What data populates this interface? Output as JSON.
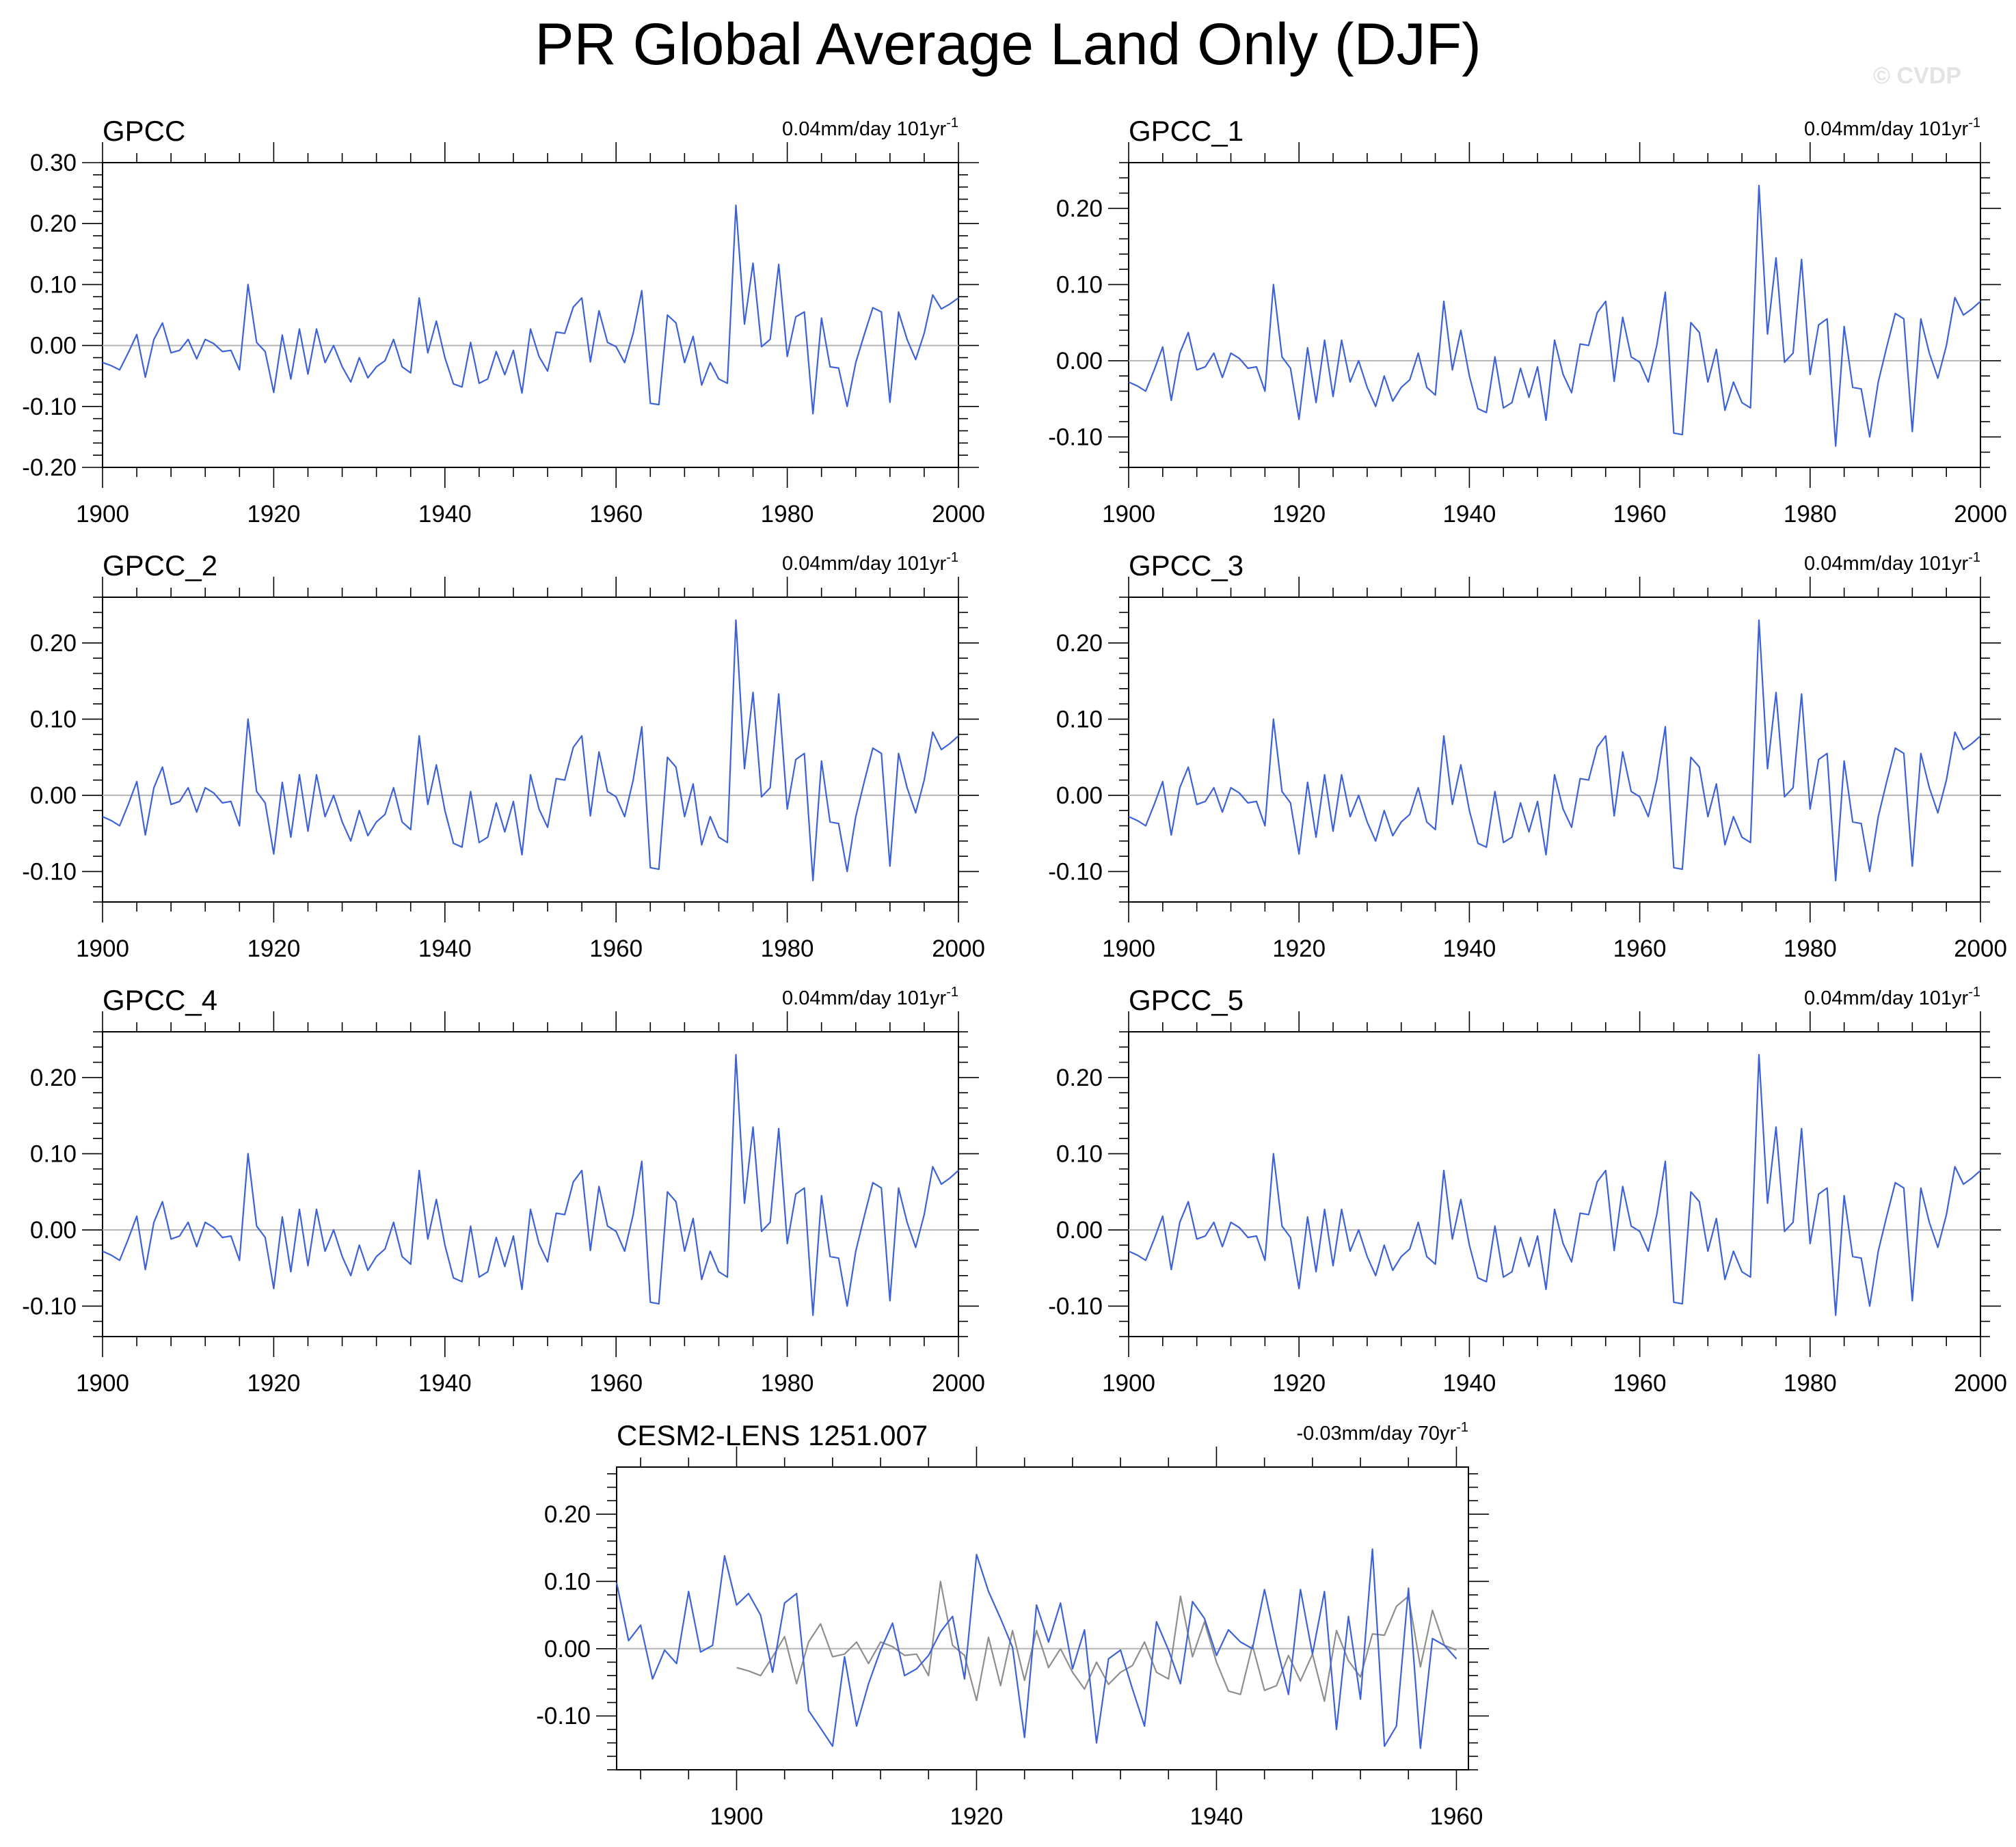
{
  "title": "PR Global Average Land Only (DJF)",
  "watermark": "© CVDP",
  "colors": {
    "series": "#3d62d8",
    "zero_line": "#b5b5b5",
    "secondary": "#8e8e8e",
    "frame": "#000000"
  },
  "chart_data": [
    {
      "type": "line",
      "title": "GPCC",
      "trend": {
        "value": "0.04mm/day 101yr",
        "exp": "-1"
      },
      "xlim": [
        1900,
        2000
      ],
      "ylim": [
        -0.2,
        0.3
      ],
      "yticks": [
        -0.2,
        -0.1,
        0.0,
        0.1,
        0.2,
        0.3
      ],
      "ytick_labels": [
        "-0.20",
        "-0.10",
        "0.00",
        "0.10",
        "0.20",
        "0.30"
      ],
      "xticks": [
        1900,
        1920,
        1940,
        1960,
        1980,
        2000
      ],
      "x_start": 1900,
      "series": [
        {
          "name": "GPCC",
          "values": [
            -0.028,
            -0.033,
            -0.04,
            -0.012,
            0.018,
            -0.052,
            0.01,
            0.037,
            -0.012,
            -0.008,
            0.01,
            -0.022,
            0.01,
            0.003,
            -0.01,
            -0.008,
            -0.04,
            0.1,
            0.005,
            -0.01,
            -0.077,
            0.017,
            -0.055,
            0.027,
            -0.047,
            0.027,
            -0.028,
            0.0,
            -0.035,
            -0.06,
            -0.02,
            -0.053,
            -0.035,
            -0.025,
            0.01,
            -0.035,
            -0.045,
            0.078,
            -0.012,
            0.04,
            -0.02,
            -0.063,
            -0.068,
            0.005,
            -0.062,
            -0.055,
            -0.01,
            -0.048,
            -0.008,
            -0.078,
            0.027,
            -0.018,
            -0.042,
            0.022,
            0.02,
            0.063,
            0.078,
            -0.027,
            0.057,
            0.005,
            -0.002,
            -0.028,
            0.02,
            0.09,
            -0.095,
            -0.097,
            0.05,
            0.037,
            -0.028,
            0.015,
            -0.065,
            -0.028,
            -0.055,
            -0.062,
            0.23,
            0.035,
            0.135,
            -0.002,
            0.01,
            0.133,
            -0.018,
            0.047,
            0.055,
            -0.112,
            0.045,
            -0.035,
            -0.037,
            -0.1,
            -0.028,
            0.018,
            0.062,
            0.055,
            -0.093,
            0.055,
            0.01,
            -0.023,
            0.02,
            0.083,
            0.06,
            0.068,
            0.078
          ]
        }
      ]
    },
    {
      "type": "line",
      "title": "GPCC_1",
      "trend": {
        "value": "0.04mm/day 101yr",
        "exp": "-1"
      },
      "xlim": [
        1900,
        2000
      ],
      "ylim": [
        -0.14,
        0.26
      ],
      "yticks": [
        -0.1,
        0.0,
        0.1,
        0.2
      ],
      "ytick_labels": [
        "-0.10",
        "0.00",
        "0.10",
        "0.20"
      ],
      "xticks": [
        1900,
        1920,
        1940,
        1960,
        1980,
        2000
      ],
      "x_start": 1900,
      "series": [
        {
          "name": "GPCC_1",
          "values": [
            -0.028,
            -0.033,
            -0.04,
            -0.012,
            0.018,
            -0.052,
            0.01,
            0.037,
            -0.012,
            -0.008,
            0.01,
            -0.022,
            0.01,
            0.003,
            -0.01,
            -0.008,
            -0.04,
            0.1,
            0.005,
            -0.01,
            -0.077,
            0.017,
            -0.055,
            0.027,
            -0.047,
            0.027,
            -0.028,
            0.0,
            -0.035,
            -0.06,
            -0.02,
            -0.053,
            -0.035,
            -0.025,
            0.01,
            -0.035,
            -0.045,
            0.078,
            -0.012,
            0.04,
            -0.02,
            -0.063,
            -0.068,
            0.005,
            -0.062,
            -0.055,
            -0.01,
            -0.048,
            -0.008,
            -0.078,
            0.027,
            -0.018,
            -0.042,
            0.022,
            0.02,
            0.063,
            0.078,
            -0.027,
            0.057,
            0.005,
            -0.002,
            -0.028,
            0.02,
            0.09,
            -0.095,
            -0.097,
            0.05,
            0.037,
            -0.028,
            0.015,
            -0.065,
            -0.028,
            -0.055,
            -0.062,
            0.23,
            0.035,
            0.135,
            -0.002,
            0.01,
            0.133,
            -0.018,
            0.047,
            0.055,
            -0.112,
            0.045,
            -0.035,
            -0.037,
            -0.1,
            -0.028,
            0.018,
            0.062,
            0.055,
            -0.093,
            0.055,
            0.01,
            -0.023,
            0.02,
            0.083,
            0.06,
            0.068,
            0.078
          ]
        }
      ]
    },
    {
      "type": "line",
      "title": "GPCC_2",
      "trend": {
        "value": "0.04mm/day 101yr",
        "exp": "-1"
      },
      "xlim": [
        1900,
        2000
      ],
      "ylim": [
        -0.14,
        0.26
      ],
      "yticks": [
        -0.1,
        0.0,
        0.1,
        0.2
      ],
      "ytick_labels": [
        "-0.10",
        "0.00",
        "0.10",
        "0.20"
      ],
      "xticks": [
        1900,
        1920,
        1940,
        1960,
        1980,
        2000
      ],
      "x_start": 1900,
      "series": [
        {
          "name": "GPCC_2",
          "values": [
            -0.028,
            -0.033,
            -0.04,
            -0.012,
            0.018,
            -0.052,
            0.01,
            0.037,
            -0.012,
            -0.008,
            0.01,
            -0.022,
            0.01,
            0.003,
            -0.01,
            -0.008,
            -0.04,
            0.1,
            0.005,
            -0.01,
            -0.077,
            0.017,
            -0.055,
            0.027,
            -0.047,
            0.027,
            -0.028,
            0.0,
            -0.035,
            -0.06,
            -0.02,
            -0.053,
            -0.035,
            -0.025,
            0.01,
            -0.035,
            -0.045,
            0.078,
            -0.012,
            0.04,
            -0.02,
            -0.063,
            -0.068,
            0.005,
            -0.062,
            -0.055,
            -0.01,
            -0.048,
            -0.008,
            -0.078,
            0.027,
            -0.018,
            -0.042,
            0.022,
            0.02,
            0.063,
            0.078,
            -0.027,
            0.057,
            0.005,
            -0.002,
            -0.028,
            0.02,
            0.09,
            -0.095,
            -0.097,
            0.05,
            0.037,
            -0.028,
            0.015,
            -0.065,
            -0.028,
            -0.055,
            -0.062,
            0.23,
            0.035,
            0.135,
            -0.002,
            0.01,
            0.133,
            -0.018,
            0.047,
            0.055,
            -0.112,
            0.045,
            -0.035,
            -0.037,
            -0.1,
            -0.028,
            0.018,
            0.062,
            0.055,
            -0.093,
            0.055,
            0.01,
            -0.023,
            0.02,
            0.083,
            0.06,
            0.068,
            0.078
          ]
        }
      ]
    },
    {
      "type": "line",
      "title": "GPCC_3",
      "trend": {
        "value": "0.04mm/day 101yr",
        "exp": "-1"
      },
      "xlim": [
        1900,
        2000
      ],
      "ylim": [
        -0.14,
        0.26
      ],
      "yticks": [
        -0.1,
        0.0,
        0.1,
        0.2
      ],
      "ytick_labels": [
        "-0.10",
        "0.00",
        "0.10",
        "0.20"
      ],
      "xticks": [
        1900,
        1920,
        1940,
        1960,
        1980,
        2000
      ],
      "x_start": 1900,
      "series": [
        {
          "name": "GPCC_3",
          "values": [
            -0.028,
            -0.033,
            -0.04,
            -0.012,
            0.018,
            -0.052,
            0.01,
            0.037,
            -0.012,
            -0.008,
            0.01,
            -0.022,
            0.01,
            0.003,
            -0.01,
            -0.008,
            -0.04,
            0.1,
            0.005,
            -0.01,
            -0.077,
            0.017,
            -0.055,
            0.027,
            -0.047,
            0.027,
            -0.028,
            0.0,
            -0.035,
            -0.06,
            -0.02,
            -0.053,
            -0.035,
            -0.025,
            0.01,
            -0.035,
            -0.045,
            0.078,
            -0.012,
            0.04,
            -0.02,
            -0.063,
            -0.068,
            0.005,
            -0.062,
            -0.055,
            -0.01,
            -0.048,
            -0.008,
            -0.078,
            0.027,
            -0.018,
            -0.042,
            0.022,
            0.02,
            0.063,
            0.078,
            -0.027,
            0.057,
            0.005,
            -0.002,
            -0.028,
            0.02,
            0.09,
            -0.095,
            -0.097,
            0.05,
            0.037,
            -0.028,
            0.015,
            -0.065,
            -0.028,
            -0.055,
            -0.062,
            0.23,
            0.035,
            0.135,
            -0.002,
            0.01,
            0.133,
            -0.018,
            0.047,
            0.055,
            -0.112,
            0.045,
            -0.035,
            -0.037,
            -0.1,
            -0.028,
            0.018,
            0.062,
            0.055,
            -0.093,
            0.055,
            0.01,
            -0.023,
            0.02,
            0.083,
            0.06,
            0.068,
            0.078
          ]
        }
      ]
    },
    {
      "type": "line",
      "title": "GPCC_4",
      "trend": {
        "value": "0.04mm/day 101yr",
        "exp": "-1"
      },
      "xlim": [
        1900,
        2000
      ],
      "ylim": [
        -0.14,
        0.26
      ],
      "yticks": [
        -0.1,
        0.0,
        0.1,
        0.2
      ],
      "ytick_labels": [
        "-0.10",
        "0.00",
        "0.10",
        "0.20"
      ],
      "xticks": [
        1900,
        1920,
        1940,
        1960,
        1980,
        2000
      ],
      "x_start": 1900,
      "series": [
        {
          "name": "GPCC_4",
          "values": [
            -0.028,
            -0.033,
            -0.04,
            -0.012,
            0.018,
            -0.052,
            0.01,
            0.037,
            -0.012,
            -0.008,
            0.01,
            -0.022,
            0.01,
            0.003,
            -0.01,
            -0.008,
            -0.04,
            0.1,
            0.005,
            -0.01,
            -0.077,
            0.017,
            -0.055,
            0.027,
            -0.047,
            0.027,
            -0.028,
            0.0,
            -0.035,
            -0.06,
            -0.02,
            -0.053,
            -0.035,
            -0.025,
            0.01,
            -0.035,
            -0.045,
            0.078,
            -0.012,
            0.04,
            -0.02,
            -0.063,
            -0.068,
            0.005,
            -0.062,
            -0.055,
            -0.01,
            -0.048,
            -0.008,
            -0.078,
            0.027,
            -0.018,
            -0.042,
            0.022,
            0.02,
            0.063,
            0.078,
            -0.027,
            0.057,
            0.005,
            -0.002,
            -0.028,
            0.02,
            0.09,
            -0.095,
            -0.097,
            0.05,
            0.037,
            -0.028,
            0.015,
            -0.065,
            -0.028,
            -0.055,
            -0.062,
            0.23,
            0.035,
            0.135,
            -0.002,
            0.01,
            0.133,
            -0.018,
            0.047,
            0.055,
            -0.112,
            0.045,
            -0.035,
            -0.037,
            -0.1,
            -0.028,
            0.018,
            0.062,
            0.055,
            -0.093,
            0.055,
            0.01,
            -0.023,
            0.02,
            0.083,
            0.06,
            0.068,
            0.078
          ]
        }
      ]
    },
    {
      "type": "line",
      "title": "GPCC_5",
      "trend": {
        "value": "0.04mm/day 101yr",
        "exp": "-1"
      },
      "xlim": [
        1900,
        2000
      ],
      "ylim": [
        -0.14,
        0.26
      ],
      "yticks": [
        -0.1,
        0.0,
        0.1,
        0.2
      ],
      "ytick_labels": [
        "-0.10",
        "0.00",
        "0.10",
        "0.20"
      ],
      "xticks": [
        1900,
        1920,
        1940,
        1960,
        1980,
        2000
      ],
      "x_start": 1900,
      "series": [
        {
          "name": "GPCC_5",
          "values": [
            -0.028,
            -0.033,
            -0.04,
            -0.012,
            0.018,
            -0.052,
            0.01,
            0.037,
            -0.012,
            -0.008,
            0.01,
            -0.022,
            0.01,
            0.003,
            -0.01,
            -0.008,
            -0.04,
            0.1,
            0.005,
            -0.01,
            -0.077,
            0.017,
            -0.055,
            0.027,
            -0.047,
            0.027,
            -0.028,
            0.0,
            -0.035,
            -0.06,
            -0.02,
            -0.053,
            -0.035,
            -0.025,
            0.01,
            -0.035,
            -0.045,
            0.078,
            -0.012,
            0.04,
            -0.02,
            -0.063,
            -0.068,
            0.005,
            -0.062,
            -0.055,
            -0.01,
            -0.048,
            -0.008,
            -0.078,
            0.027,
            -0.018,
            -0.042,
            0.022,
            0.02,
            0.063,
            0.078,
            -0.027,
            0.057,
            0.005,
            -0.002,
            -0.028,
            0.02,
            0.09,
            -0.095,
            -0.097,
            0.05,
            0.037,
            -0.028,
            0.015,
            -0.065,
            -0.028,
            -0.055,
            -0.062,
            0.23,
            0.035,
            0.135,
            -0.002,
            0.01,
            0.133,
            -0.018,
            0.047,
            0.055,
            -0.112,
            0.045,
            -0.035,
            -0.037,
            -0.1,
            -0.028,
            0.018,
            0.062,
            0.055,
            -0.093,
            0.055,
            0.01,
            -0.023,
            0.02,
            0.083,
            0.06,
            0.068,
            0.078
          ]
        }
      ]
    },
    {
      "type": "line",
      "title": "CESM2-LENS 1251.007",
      "trend": {
        "value": "-0.03mm/day 70yr",
        "exp": "-1"
      },
      "xlim": [
        1890,
        1961
      ],
      "ylim": [
        -0.18,
        0.27
      ],
      "yticks": [
        -0.1,
        0.0,
        0.1,
        0.2
      ],
      "ytick_labels": [
        "-0.10",
        "0.00",
        "0.10",
        "0.20"
      ],
      "xticks": [
        1900,
        1920,
        1940,
        1960
      ],
      "series": [
        {
          "name": "CESM2-LENS 1251.007",
          "x_start": 1890,
          "values": [
            0.098,
            0.012,
            0.035,
            -0.045,
            -0.002,
            -0.022,
            0.085,
            -0.005,
            0.005,
            0.138,
            0.065,
            0.082,
            0.05,
            -0.035,
            0.068,
            0.082,
            -0.092,
            -0.118,
            -0.145,
            -0.012,
            -0.115,
            -0.052,
            -0.002,
            0.038,
            -0.04,
            -0.03,
            -0.01,
            0.025,
            0.048,
            -0.045,
            0.14,
            0.085,
            0.045,
            0.002,
            -0.132,
            0.065,
            0.01,
            0.068,
            -0.03,
            0.028,
            -0.14,
            -0.015,
            -0.002,
            -0.06,
            -0.115,
            0.04,
            -0.002,
            -0.052,
            0.07,
            0.045,
            -0.01,
            0.028,
            0.01,
            0.0,
            0.088,
            0.005,
            -0.068,
            0.088,
            -0.008,
            0.085,
            -0.12,
            0.048,
            -0.075,
            0.148,
            -0.145,
            -0.115,
            0.09,
            -0.148,
            0.015,
            0.005,
            -0.015
          ]
        },
        {
          "name": "GPCC",
          "x_start": 1900,
          "values": [
            -0.028,
            -0.033,
            -0.04,
            -0.012,
            0.018,
            -0.052,
            0.01,
            0.037,
            -0.012,
            -0.008,
            0.01,
            -0.022,
            0.01,
            0.003,
            -0.01,
            -0.008,
            -0.04,
            0.1,
            0.005,
            -0.01,
            -0.077,
            0.017,
            -0.055,
            0.027,
            -0.047,
            0.027,
            -0.028,
            0.0,
            -0.035,
            -0.06,
            -0.02,
            -0.053,
            -0.035,
            -0.025,
            0.01,
            -0.035,
            -0.045,
            0.078,
            -0.012,
            0.04,
            -0.02,
            -0.063,
            -0.068,
            0.005,
            -0.062,
            -0.055,
            -0.01,
            -0.048,
            -0.008,
            -0.078,
            0.027,
            -0.018,
            -0.042,
            0.022,
            0.02,
            0.063,
            0.078,
            -0.027,
            0.057,
            0.005,
            -0.002
          ]
        }
      ]
    }
  ]
}
